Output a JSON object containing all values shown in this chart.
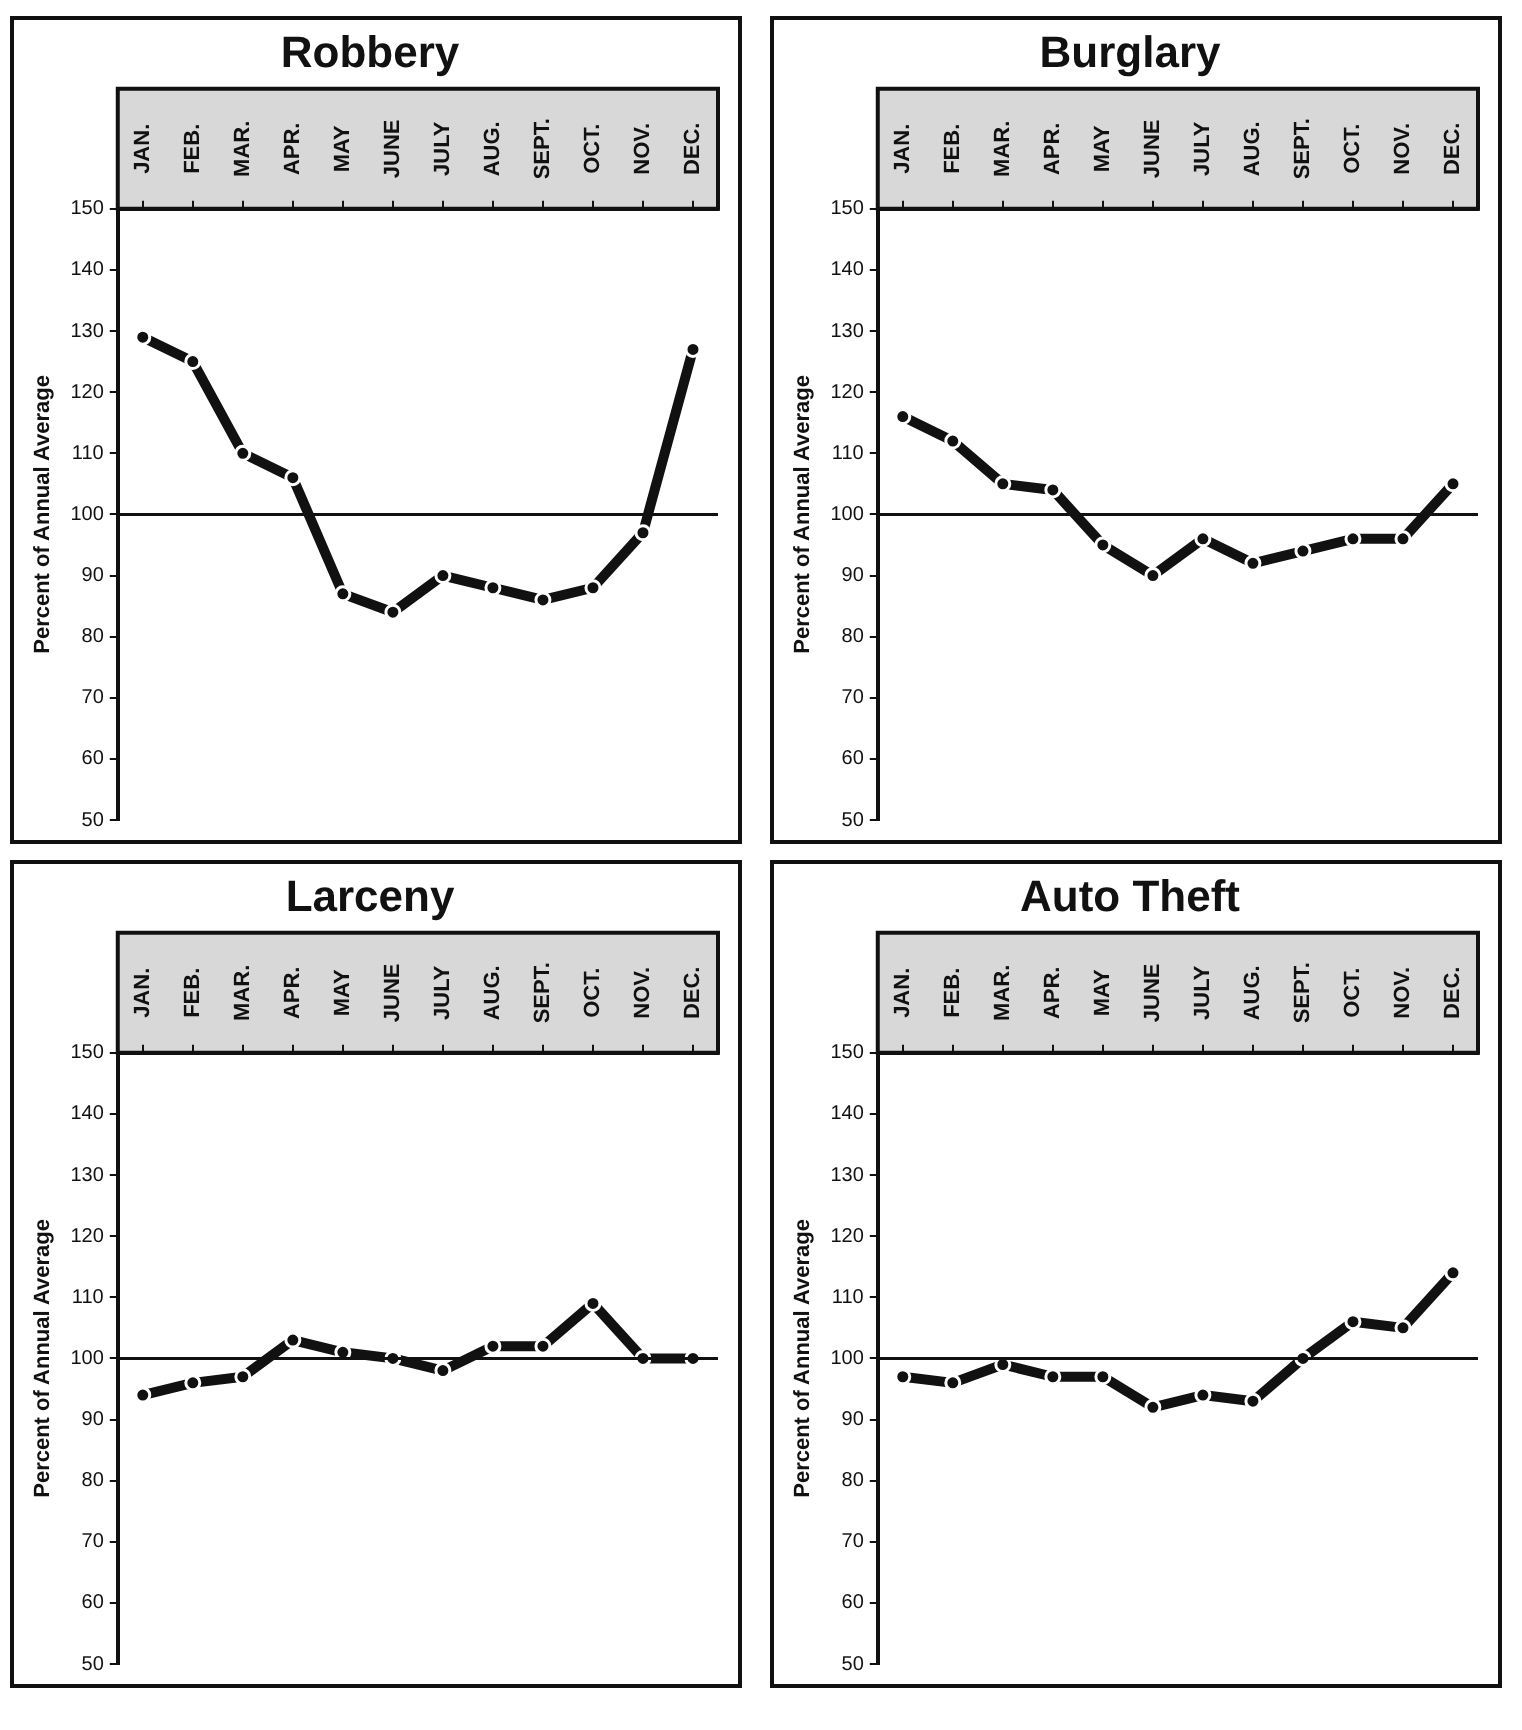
{
  "chart_data": [
    {
      "type": "line",
      "title": "Robbery",
      "ylabel": "Percent of Annual Average",
      "categories": [
        "JAN.",
        "FEB.",
        "MAR.",
        "APR.",
        "MAY",
        "JUNE",
        "JULY",
        "AUG.",
        "SEPT.",
        "OCT.",
        "NOV.",
        "DEC."
      ],
      "series": [
        {
          "color": "#111111",
          "values": [
            129,
            125,
            110,
            106,
            87,
            84,
            90,
            88,
            86,
            88,
            97,
            127
          ]
        }
      ],
      "ylim": [
        50,
        150
      ],
      "yticks": [
        50,
        60,
        70,
        80,
        90,
        100,
        110,
        120,
        130,
        140,
        150
      ],
      "ref_lines": [
        {
          "axis": "y",
          "value": 100
        }
      ],
      "grid": false,
      "legend": false,
      "marker": "circle",
      "line_style": "solid"
    },
    {
      "type": "line",
      "title": "Burglary",
      "ylabel": "Percent of Annual Average",
      "categories": [
        "JAN.",
        "FEB.",
        "MAR.",
        "APR.",
        "MAY",
        "JUNE",
        "JULY",
        "AUG.",
        "SEPT.",
        "OCT.",
        "NOV.",
        "DEC."
      ],
      "series": [
        {
          "color": "#111111",
          "values": [
            116,
            112,
            105,
            104,
            95,
            90,
            96,
            92,
            94,
            96,
            96,
            105
          ]
        }
      ],
      "ylim": [
        50,
        150
      ],
      "yticks": [
        50,
        60,
        70,
        80,
        90,
        100,
        110,
        120,
        130,
        140,
        150
      ],
      "ref_lines": [
        {
          "axis": "y",
          "value": 100
        }
      ],
      "grid": false,
      "legend": false,
      "marker": "circle",
      "line_style": "solid"
    },
    {
      "type": "line",
      "title": "Larceny",
      "ylabel": "Percent of Annual Average",
      "categories": [
        "JAN.",
        "FEB.",
        "MAR.",
        "APR.",
        "MAY",
        "JUNE",
        "JULY",
        "AUG.",
        "SEPT.",
        "OCT.",
        "NOV.",
        "DEC."
      ],
      "series": [
        {
          "color": "#111111",
          "values": [
            94,
            96,
            97,
            103,
            101,
            100,
            98,
            102,
            102,
            109,
            100,
            100
          ]
        }
      ],
      "ylim": [
        50,
        150
      ],
      "yticks": [
        50,
        60,
        70,
        80,
        90,
        100,
        110,
        120,
        130,
        140,
        150
      ],
      "ref_lines": [
        {
          "axis": "y",
          "value": 100
        }
      ],
      "grid": false,
      "legend": false,
      "marker": "circle",
      "line_style": "solid"
    },
    {
      "type": "line",
      "title": "Auto Theft",
      "ylabel": "Percent of Annual Average",
      "categories": [
        "JAN.",
        "FEB.",
        "MAR.",
        "APR.",
        "MAY",
        "JUNE",
        "JULY",
        "AUG.",
        "SEPT.",
        "OCT.",
        "NOV.",
        "DEC."
      ],
      "series": [
        {
          "color": "#111111",
          "values": [
            97,
            96,
            99,
            97,
            97,
            92,
            94,
            93,
            100,
            106,
            105,
            114
          ]
        }
      ],
      "ylim": [
        50,
        150
      ],
      "yticks": [
        50,
        60,
        70,
        80,
        90,
        100,
        110,
        120,
        130,
        140,
        150
      ],
      "ref_lines": [
        {
          "axis": "y",
          "value": 100
        }
      ],
      "grid": false,
      "legend": false,
      "marker": "circle",
      "line_style": "solid"
    }
  ]
}
